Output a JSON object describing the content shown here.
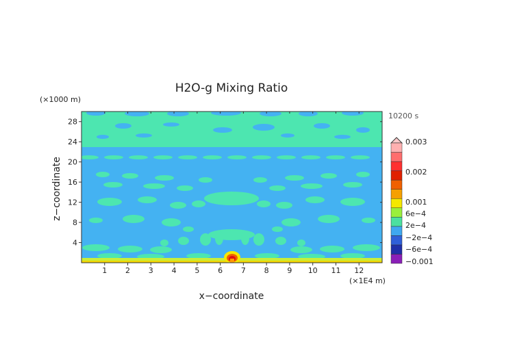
{
  "chart_data": {
    "type": "heatmap",
    "title": "H2O-g Mixing Ratio",
    "xlabel": "x−coordinate",
    "ylabel": "z−coordinate",
    "x_unit": "(×1E4 m)",
    "y_unit": "(×1000 m)",
    "time_label": "10200 s",
    "xlim": [
      0,
      13
    ],
    "ylim": [
      0,
      30
    ],
    "x_ticks": [
      1,
      2,
      3,
      4,
      5,
      6,
      7,
      8,
      9,
      10,
      11,
      12
    ],
    "y_ticks": [
      4,
      8,
      12,
      16,
      20,
      24,
      28
    ],
    "grid": false,
    "colorbar": {
      "placement": "right",
      "labels": [
        "0.003",
        "0.002",
        "0.001",
        "6e−4",
        "2e−4",
        "−2e−4",
        "−6e−4",
        "−0.001"
      ],
      "colors": [
        "#8a1fb8",
        "#1f2fa8",
        "#2f5fd8",
        "#3fa8f0",
        "#4be0a0",
        "#9aef3c",
        "#f5e800",
        "#f5a000",
        "#f06000",
        "#e02000",
        "#ff3030",
        "#ff6e6e",
        "#ffb0b0"
      ]
    },
    "background_color": "#44b2f2",
    "feature_color": "#4de6b0"
  }
}
